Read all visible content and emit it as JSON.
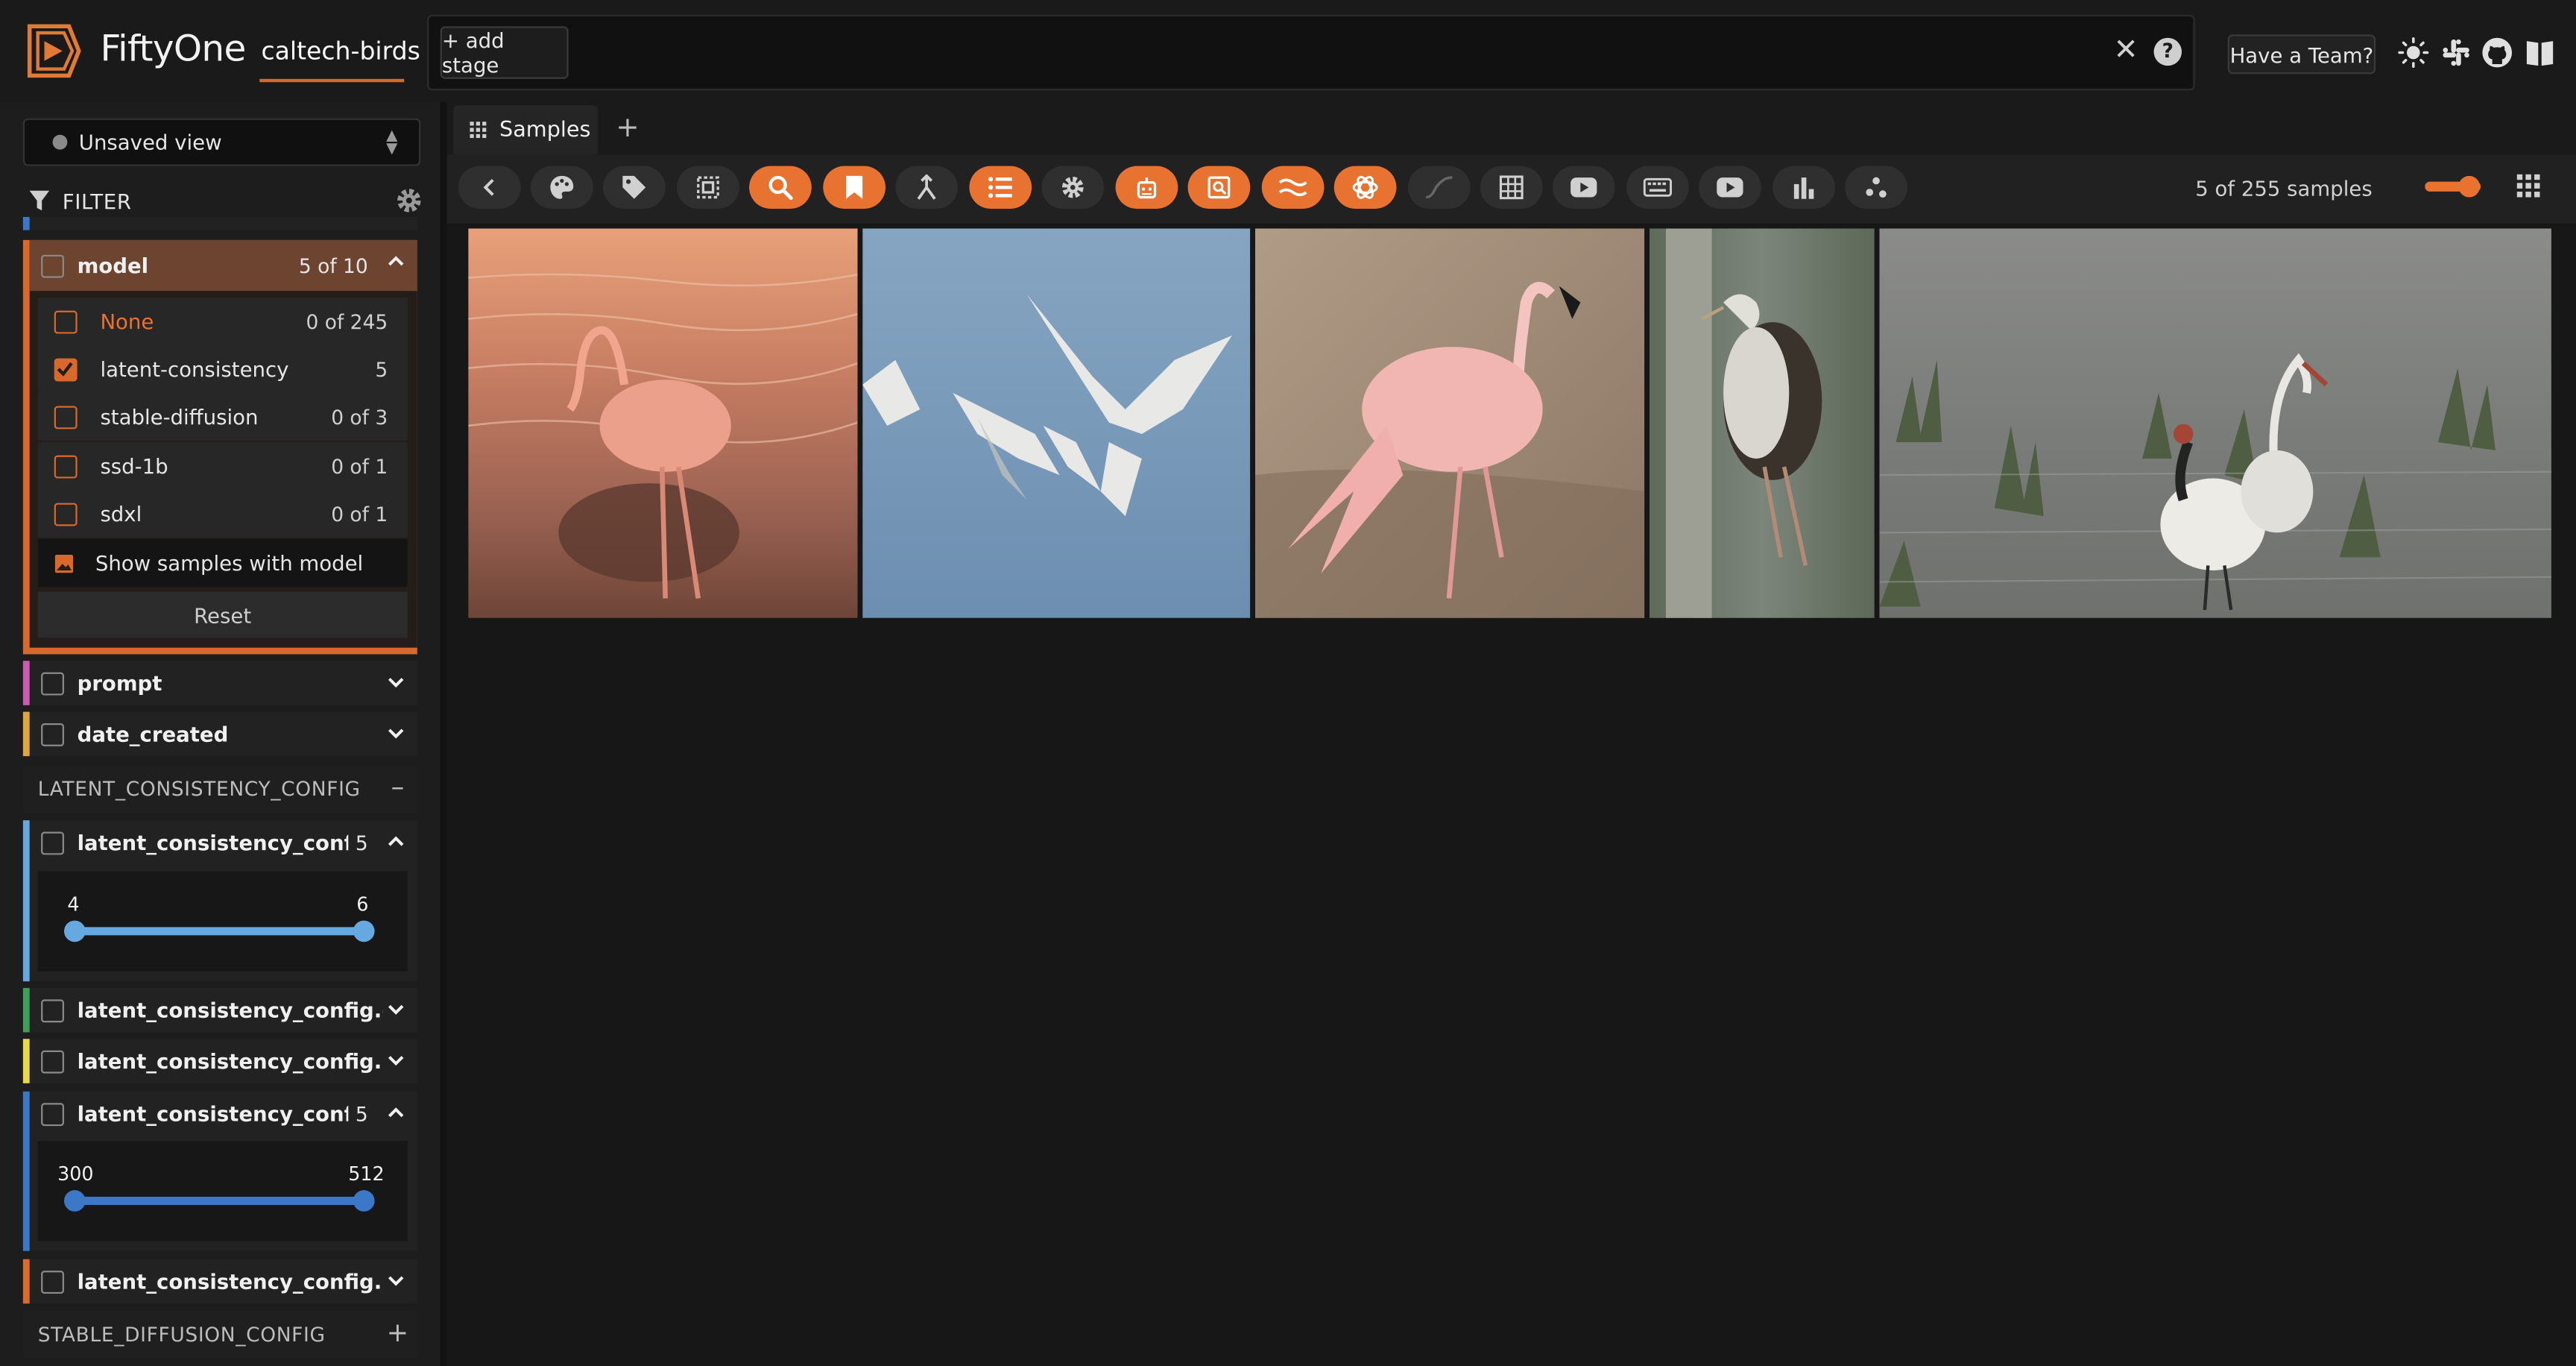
{
  "header": {
    "brand": "FiftyOne",
    "dataset_name": "caltech-birds",
    "add_stage_label": "+ add stage",
    "team_button_label": "Have a Team?",
    "icons": [
      "sun-icon",
      "slack-icon",
      "github-icon",
      "docs-icon"
    ]
  },
  "sidebar": {
    "view_select": {
      "label": "Unsaved view"
    },
    "filter_title": "FILTER",
    "model_field": {
      "name": "model",
      "count": "5 of 10",
      "values": [
        {
          "label": "None",
          "count": "0 of 245",
          "checked": false
        },
        {
          "label": "latent-consistency",
          "count": "5",
          "checked": true
        },
        {
          "label": "stable-diffusion",
          "count": "0 of 3",
          "checked": false
        },
        {
          "label": "ssd-1b",
          "count": "0 of 1",
          "checked": false
        },
        {
          "label": "sdxl",
          "count": "0 of 1",
          "checked": false
        }
      ],
      "show_samples_label": "Show samples with model",
      "reset_label": "Reset"
    },
    "fields": {
      "prompt": "prompt",
      "date_created": "date_created",
      "lcm_inf": {
        "name": "latent_consistency_config.inf…",
        "count": "5",
        "min": "4",
        "max": "6"
      },
      "lcm_guida": "latent_consistency_config.guida…",
      "lcm_lcm_o": "latent_consistency_config.lcm_o…",
      "lcm_wid": {
        "name": "latent_consistency_config.wid…",
        "count": "5",
        "min": "300",
        "max": "512"
      },
      "lcm_heigh": "latent_consistency_config.heigh…"
    },
    "groups": {
      "latent": {
        "label": "LATENT_CONSISTENCY_CONFIG",
        "toggle": "–"
      },
      "stable": {
        "label": "STABLE_DIFFUSION_CONFIG",
        "toggle": "+"
      }
    },
    "colors": {
      "model": "#d9692b",
      "prompt": "#c95bb0",
      "date_created": "#e0a63a",
      "lcm_inf": "#66a8e0",
      "lcm_guida": "#3f9e5a",
      "lcm_lcm_o": "#e8d84a",
      "lcm_wid": "#3c78c8",
      "lcm_heigh": "#d96b2b"
    }
  },
  "main": {
    "tabs": [
      {
        "label": "Samples"
      }
    ],
    "add_tab_label": "+",
    "sample_count": "5 of 255 samples",
    "accent_color": "#e8722f"
  }
}
